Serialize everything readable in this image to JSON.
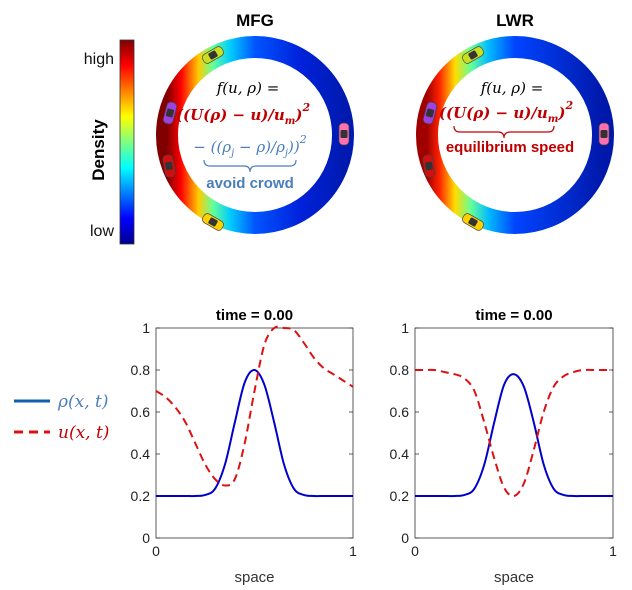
{
  "colorbar": {
    "label": "Density",
    "high": "high",
    "low": "low",
    "stops": [
      "#00008f",
      "#0000ff",
      "#0080ff",
      "#00ffff",
      "#80ff80",
      "#ffff00",
      "#ff8000",
      "#ff0000",
      "#800000"
    ]
  },
  "panels": [
    {
      "title": "MFG",
      "equation_line1": "f(u, ρ) =",
      "equation_line2": "((U(ρ) − u)/u",
      "equation_line2_sub": "m",
      "equation_line3": "− ((ρ",
      "equation_line3_mid": "j",
      "equation_line3_end": " − ρ)/ρ",
      "equation_line3_sub": "j",
      "term_note": "avoid crowd",
      "cars": [
        "yellow-green car",
        "purple car",
        "red car",
        "yellow car",
        "pink car"
      ]
    },
    {
      "title": "LWR",
      "equation_line1": "f(u, ρ) =",
      "equation_line2": "((U(ρ) − u)/u",
      "equation_line2_sub": "m",
      "term_note": "equilibrium speed",
      "cars": [
        "yellow-green car",
        "purple car",
        "red car",
        "yellow car",
        "pink car"
      ]
    }
  ],
  "legend": {
    "rho": "ρ(x, t)",
    "u": "u(x, t)"
  },
  "colors": {
    "rho": "#0000cc",
    "u": "#dd1111",
    "mfg_note": "#4a7ebb",
    "lwr_note": "#c00000",
    "equation_red": "#c00000"
  },
  "chart_data": [
    {
      "type": "line",
      "title": "time = 0.00",
      "xlabel": "space",
      "ylabel": "",
      "xlim": [
        0,
        1
      ],
      "ylim": [
        0,
        1
      ],
      "xticks": [
        "0",
        "1"
      ],
      "yticks": [
        "0",
        "0.2",
        "0.4",
        "0.6",
        "0.8",
        "1"
      ],
      "x": [
        0,
        0.05,
        0.1,
        0.15,
        0.2,
        0.25,
        0.3,
        0.35,
        0.4,
        0.45,
        0.5,
        0.55,
        0.6,
        0.65,
        0.7,
        0.75,
        0.8,
        0.85,
        0.9,
        0.95,
        1
      ],
      "series": [
        {
          "name": "ρ(x, t)",
          "style": "solid",
          "values": [
            0.2,
            0.2,
            0.2,
            0.2,
            0.2,
            0.205,
            0.235,
            0.35,
            0.55,
            0.74,
            0.8,
            0.73,
            0.55,
            0.35,
            0.235,
            0.205,
            0.2,
            0.2,
            0.2,
            0.2,
            0.2
          ]
        },
        {
          "name": "u(x, t)",
          "style": "dashed",
          "values": [
            0.7,
            0.67,
            0.62,
            0.55,
            0.45,
            0.35,
            0.28,
            0.25,
            0.28,
            0.45,
            0.7,
            0.92,
            1.0,
            1.0,
            0.99,
            0.93,
            0.86,
            0.81,
            0.78,
            0.75,
            0.72
          ]
        }
      ]
    },
    {
      "type": "line",
      "title": "time = 0.00",
      "xlabel": "space",
      "ylabel": "",
      "xlim": [
        0,
        1
      ],
      "ylim": [
        0,
        1
      ],
      "xticks": [
        "0",
        "1"
      ],
      "yticks": [
        "0",
        "0.2",
        "0.4",
        "0.6",
        "0.8",
        "1"
      ],
      "x": [
        0,
        0.05,
        0.1,
        0.15,
        0.2,
        0.25,
        0.3,
        0.35,
        0.4,
        0.45,
        0.5,
        0.55,
        0.6,
        0.65,
        0.7,
        0.75,
        0.8,
        0.85,
        0.9,
        0.95,
        1
      ],
      "series": [
        {
          "name": "ρ(x, t)",
          "style": "solid",
          "values": [
            0.2,
            0.2,
            0.2,
            0.2,
            0.2,
            0.205,
            0.235,
            0.35,
            0.55,
            0.73,
            0.78,
            0.72,
            0.55,
            0.35,
            0.235,
            0.205,
            0.2,
            0.2,
            0.2,
            0.2,
            0.2
          ]
        },
        {
          "name": "u(x, t)",
          "style": "dashed",
          "values": [
            0.8,
            0.8,
            0.8,
            0.79,
            0.78,
            0.76,
            0.7,
            0.55,
            0.38,
            0.24,
            0.2,
            0.26,
            0.42,
            0.6,
            0.72,
            0.77,
            0.79,
            0.8,
            0.8,
            0.8,
            0.8
          ]
        }
      ]
    }
  ]
}
